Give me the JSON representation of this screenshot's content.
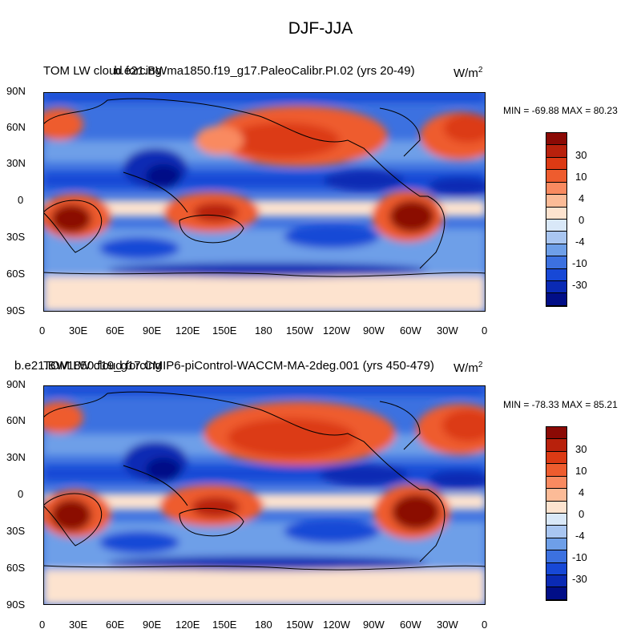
{
  "figure": {
    "title": "DJF-JJA"
  },
  "panels": [
    {
      "id": "top",
      "title_left": "TOM LW cloud forcing",
      "title_center": "b.e21.BWma1850.f19_g17.PaleoCalibr.PI.02 (yrs 20-49)",
      "units": "W/m",
      "units_sup": "2",
      "minmax": "MIN = -69.88 MAX =  80.23"
    },
    {
      "id": "bottom",
      "title_left": "TOM LW cloud forcing",
      "title_center": "b.e21.BW1850.f19_g17.CMIP6-piControl-WACCM-MA-2deg.001 (yrs 450-479)",
      "units": "W/m",
      "units_sup": "2",
      "minmax": "MIN = -78.33 MAX =  85.21"
    }
  ],
  "axes": {
    "lat_labels": [
      "90N",
      "60N",
      "30N",
      "0",
      "30S",
      "60S",
      "90S"
    ],
    "lon_labels": [
      "0",
      "30E",
      "60E",
      "90E",
      "120E",
      "150E",
      "180",
      "150W",
      "120W",
      "90W",
      "60W",
      "30W",
      "0"
    ]
  },
  "colorbar": {
    "labels": [
      "30",
      "10",
      "4",
      "0",
      "-4",
      "-10",
      "-30"
    ],
    "colors": [
      "#8b0a05",
      "#b8210c",
      "#dc3a14",
      "#ee5c2e",
      "#f98a60",
      "#fcbb97",
      "#fde3cf",
      "#d9e8f8",
      "#a9c6f1",
      "#6e9fe8",
      "#3c71e0",
      "#1748d6",
      "#0a2ab4",
      "#010e87"
    ]
  }
}
